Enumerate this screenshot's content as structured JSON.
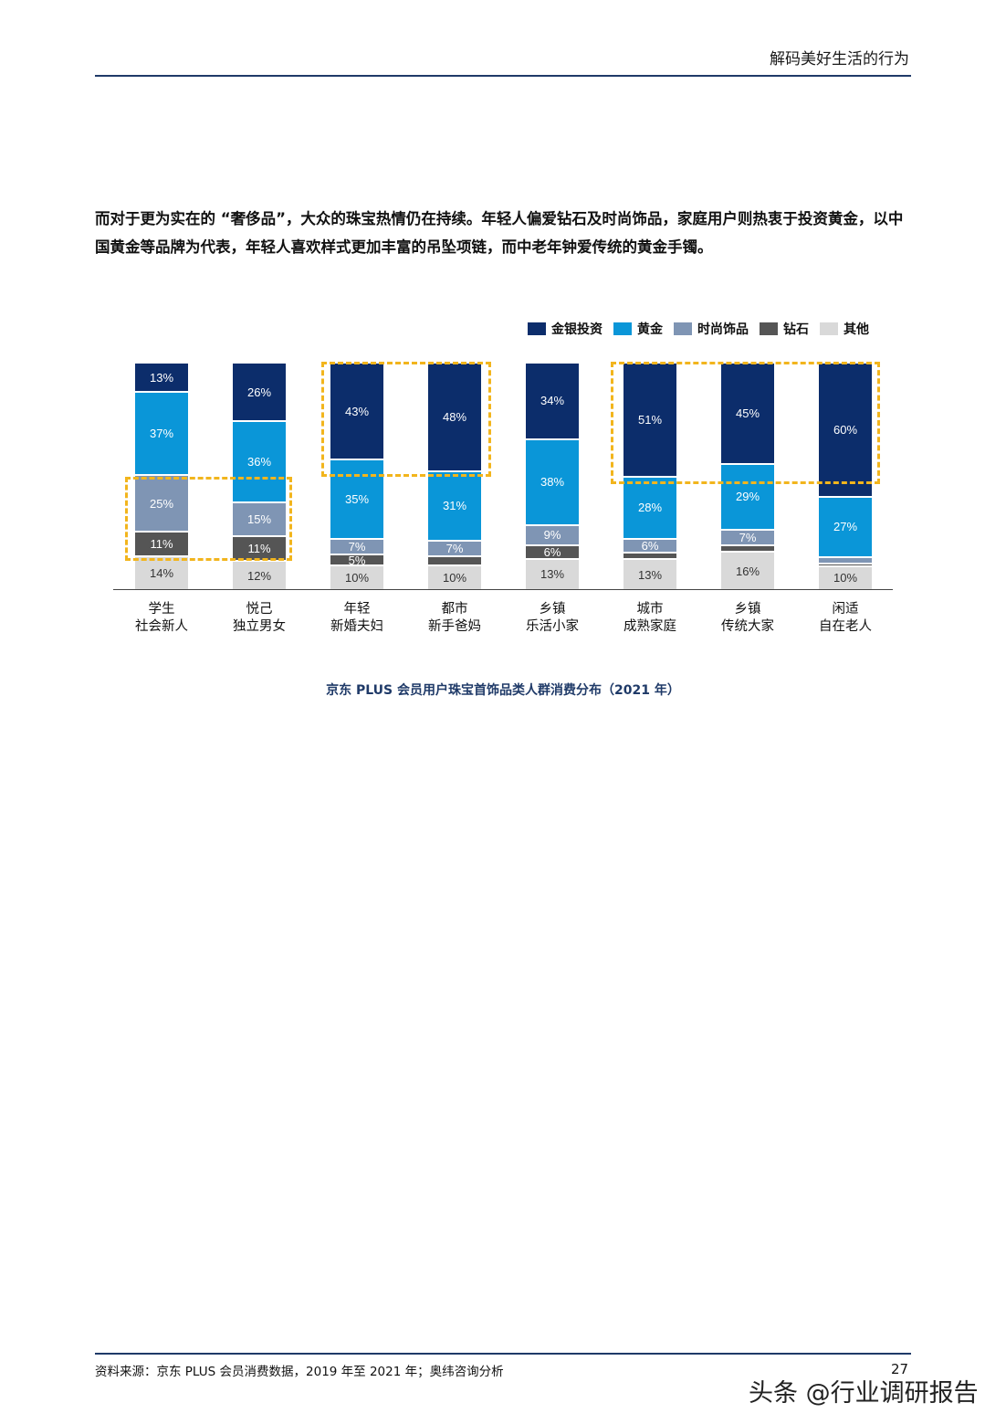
{
  "header": {
    "title": "解码美好生活的行为"
  },
  "intro": {
    "text": "而对于更为实在的 “奢侈品”，大众的珠宝热情仍在持续。年轻人偏爱钻石及时尚饰品，家庭用户则热衷于投资黄金，以中国黄金等品牌为代表，年轻人喜欢样式更加丰富的吊坠项链，而中老年钟爱传统的黄金手镯。"
  },
  "legend": [
    {
      "label": "金银投资",
      "color": "#0c2d6b"
    },
    {
      "label": "黄金",
      "color": "#0a96d8"
    },
    {
      "label": "时尚饰品",
      "color": "#7f95b4"
    },
    {
      "label": "钻石",
      "color": "#555555"
    },
    {
      "label": "其他",
      "color": "#d9d9d9"
    }
  ],
  "caption": "京东 PLUS 会员用户珠宝首饰品类人群消费分布（2021 年）",
  "footer": {
    "source": "资料来源：京东 PLUS 会员消费数据，2019 年至 2021 年；奥纬咨询分析",
    "page": "27",
    "watermark": "头条 @行业调研报告"
  },
  "chart_data": {
    "type": "bar",
    "stacked": true,
    "orientation": "vertical",
    "title": "京东 PLUS 会员用户珠宝首饰品类人群消费分布（2021 年）",
    "xlabel": "",
    "ylabel": "",
    "ylim": [
      0,
      100
    ],
    "categories": [
      "学生\n社会新人",
      "悦己\n独立男女",
      "年轻\n新婚夫妇",
      "都市\n新手爸妈",
      "乡镇\n乐活小家",
      "城市\n成熟家庭",
      "乡镇\n传统大家",
      "闲适\n自在老人"
    ],
    "category_lines": [
      [
        "学生",
        "社会新人"
      ],
      [
        "悦己",
        "独立男女"
      ],
      [
        "年轻",
        "新婚夫妇"
      ],
      [
        "都市",
        "新手爸妈"
      ],
      [
        "乡镇",
        "乐活小家"
      ],
      [
        "城市",
        "成熟家庭"
      ],
      [
        "乡镇",
        "传统大家"
      ],
      [
        "闲适",
        "自在老人"
      ]
    ],
    "series": [
      {
        "name": "金银投资",
        "color": "#0c2d6b",
        "values": [
          13,
          26,
          43,
          48,
          34,
          51,
          45,
          60
        ]
      },
      {
        "name": "黄金",
        "color": "#0a96d8",
        "values": [
          37,
          36,
          35,
          31,
          38,
          28,
          29,
          27
        ]
      },
      {
        "name": "时尚饰品",
        "color": "#7f95b4",
        "values": [
          25,
          15,
          7,
          7,
          9,
          6,
          7,
          3
        ]
      },
      {
        "name": "钻石",
        "color": "#555555",
        "values": [
          11,
          11,
          5,
          4,
          6,
          3,
          3,
          1
        ]
      },
      {
        "name": "其他",
        "color": "#d9d9d9",
        "values": [
          14,
          12,
          10,
          10,
          13,
          13,
          16,
          10
        ]
      }
    ],
    "legend_position": "top-right",
    "grid": false,
    "highlights": [
      {
        "categories": [
          "学生\n社会新人",
          "悦己\n独立男女"
        ],
        "series": [
          "时尚饰品",
          "钻石"
        ],
        "style": "dashed-yellow"
      },
      {
        "categories": [
          "年轻\n新婚夫妇",
          "都市\n新手爸妈"
        ],
        "series": [
          "金银投资"
        ],
        "style": "dashed-yellow"
      },
      {
        "categories": [
          "城市\n成熟家庭",
          "乡镇\n传统大家",
          "闲适\n自在老人"
        ],
        "series": [
          "金银投资"
        ],
        "style": "dashed-yellow"
      }
    ]
  }
}
